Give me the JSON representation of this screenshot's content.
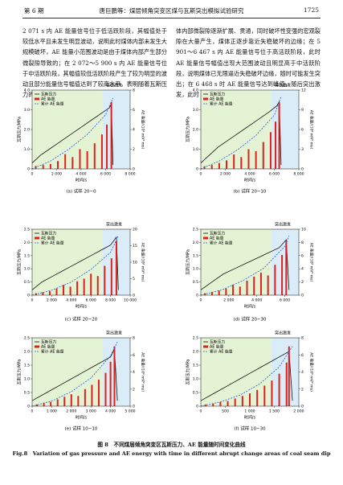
{
  "header": {
    "issue": "第 6 期",
    "running_title": "唐巨鹏等：煤层倾角突变区煤与瓦斯突出模拟试验研究",
    "page": "1725"
  },
  "text": {
    "left": "2 071 s 内 AE 能量信号位于低活跃阶段，其幅值处于较低水平且未发生明显波动，说明此时煤体内部未发生大规模破坏，AE 能量小范围波动是由于煤体内部产生部分微裂隙导致的；在 2 072～5 900 s 内 AE 能量信号位于中活跃阶段，其幅值较低活跃阶段产生了较为明显的波动且部分能量信号幅值达到了较高水平，表明随着瓦斯压力的逐渐增加，煤",
    "right": "体内部微裂隙逐渐扩展、贯通，同时破坏性变强的宏观裂隙在大量产生，煤体正逐步靠近失稳破坏的边缘；在 5 901～6 467 s 内 AE 能量信号位于高活跃阶段，此时 AE 能量信号幅值出现大范围波动且明显高于中活跃阶段，说明煤体已无限逼近失稳破坏边缘，随时可能发生突出；在 6 468 s 时 AE 能量信号达到峰值，随后突出激发，此时 AE 能量信号"
  },
  "figure_caption": {
    "cn": "图 8　不同煤层倾角突变区瓦斯压力、AE 能量随时间变化曲线",
    "en": "Fig.8　Variation of gas pressure and AE energy with time in different abrupt change areas of coal seam dip"
  },
  "chart_data": [
    {
      "type": "combo",
      "caption": "(a)  试样 20−0",
      "xlabel": "时间/s",
      "ylabel": "瓦斯压力/MPa",
      "y2label": "AE 能量/(10⁶ mV²·ms)",
      "annotation": "突出激发",
      "xlim": [
        0,
        8000
      ],
      "xticks": [
        0,
        {
          "value": 2000,
          "label": "2 000"
        },
        {
          "value": 4000,
          "label": "4 000"
        },
        {
          "value": 6000,
          "label": "6 000"
        },
        {
          "value": 8000,
          "label": "8 000"
        }
      ],
      "ylim": [
        0,
        4
      ],
      "yticks": [
        0,
        {
          "value": 1,
          "label": "1.0"
        },
        {
          "value": 2,
          "label": "2.0"
        },
        {
          "value": 3,
          "label": "3.0"
        },
        {
          "value": 4,
          "label": "4.0"
        }
      ],
      "y2lim": [
        0,
        8
      ],
      "y2ticks": [
        0,
        2,
        4,
        6,
        8
      ],
      "series": [
        {
          "name": "瓦斯压力",
          "color": "#111111",
          "kind": "line",
          "x": [
            0,
            700,
            1400,
            2100,
            2800,
            3500,
            4200,
            4900,
            5600,
            6300,
            6468,
            6600
          ],
          "values": [
            0.3,
            0.7,
            1.0,
            1.3,
            1.6,
            1.9,
            2.2,
            2.5,
            2.8,
            3.1,
            3.3,
            0.2
          ]
        },
        {
          "name": "AE 能量",
          "color": "#e0201b",
          "kind": "bar",
          "axis": "y2",
          "x": [
            300,
            900,
            1500,
            2100,
            2700,
            3300,
            3900,
            4500,
            5100,
            5700,
            6100,
            6468
          ],
          "values": [
            0.3,
            0.4,
            0.5,
            0.8,
            1.5,
            1.2,
            2.0,
            1.8,
            2.6,
            3.5,
            4.5,
            6.8
          ]
        },
        {
          "name": "累计 AE 能量",
          "color": "#2a5ad8",
          "kind": "dash",
          "axis": "y2",
          "x": [
            0,
            1500,
            3000,
            4500,
            6000,
            6600
          ],
          "values": [
            0,
            0.8,
            2.0,
            3.5,
            5.5,
            7.2
          ]
        }
      ]
    },
    {
      "type": "combo",
      "caption": "(b)  试样 20−10",
      "xlabel": "时间/s",
      "ylabel": "瓦斯压力/MPa",
      "y2label": "AE 能量/(10⁶ mV²·ms)",
      "annotation": "突出激发",
      "xlim": [
        0,
        8000
      ],
      "xticks": [
        0,
        {
          "value": 2000,
          "label": "2 000"
        },
        {
          "value": 4000,
          "label": "4 000"
        },
        {
          "value": 6000,
          "label": "6 000"
        },
        {
          "value": 8000,
          "label": "8 000"
        }
      ],
      "ylim": [
        0,
        4
      ],
      "yticks": [
        0,
        {
          "value": 1,
          "label": "1.0"
        },
        {
          "value": 2,
          "label": "2.0"
        },
        {
          "value": 3,
          "label": "3.0"
        },
        {
          "value": 4,
          "label": "4.0"
        }
      ],
      "y2lim": [
        0,
        12
      ],
      "y2ticks": [
        0,
        3,
        6,
        9,
        12
      ],
      "series": [
        {
          "name": "瓦斯压力",
          "color": "#111111",
          "kind": "line",
          "x": [
            0,
            700,
            1400,
            2100,
            2800,
            3500,
            4200,
            4900,
            5600,
            6200,
            6400,
            6550
          ],
          "values": [
            0.3,
            0.7,
            1.1,
            1.4,
            1.7,
            2.0,
            2.3,
            2.6,
            2.9,
            3.2,
            3.4,
            0.2
          ]
        },
        {
          "name": "AE 能量",
          "color": "#e0201b",
          "kind": "bar",
          "axis": "y2",
          "x": [
            300,
            900,
            1500,
            2100,
            2700,
            3300,
            3900,
            4500,
            5100,
            5700,
            6100,
            6400
          ],
          "values": [
            0.4,
            0.6,
            0.9,
            1.3,
            2.2,
            1.8,
            3.0,
            2.7,
            4.1,
            5.6,
            7.2,
            10.1
          ]
        },
        {
          "name": "累计 AE 能量",
          "color": "#2a5ad8",
          "kind": "dash",
          "axis": "y2",
          "x": [
            0,
            1500,
            3000,
            4500,
            6000,
            6550
          ],
          "values": [
            0,
            1.2,
            2.9,
            5.1,
            8.2,
            11.0
          ]
        }
      ]
    },
    {
      "type": "combo",
      "caption": "(c)  试样 20−20",
      "xlabel": "时间/s",
      "ylabel": "瓦斯压力/MPa",
      "y2label": "AE 能量/(10⁶ mV²·ms)",
      "annotation": "突出激发",
      "xlim": [
        0,
        10000
      ],
      "xticks": [
        0,
        {
          "value": 2000,
          "label": "2 000"
        },
        {
          "value": 4000,
          "label": "4 000"
        },
        {
          "value": 6000,
          "label": "6 000"
        },
        {
          "value": 8000,
          "label": "8 000"
        },
        {
          "value": 10000,
          "label": "10 000"
        }
      ],
      "ylim": [
        0,
        2.5
      ],
      "yticks": [
        0,
        0.5,
        {
          "value": 1,
          "label": "1.0"
        },
        1.5,
        {
          "value": 2,
          "label": "2.0"
        },
        2.5
      ],
      "y2lim": [
        0,
        20
      ],
      "y2ticks": [
        0,
        5,
        10,
        15,
        20
      ],
      "series": [
        {
          "name": "瓦斯压力",
          "color": "#111111",
          "kind": "line",
          "x": [
            0,
            1000,
            2000,
            3000,
            4000,
            5000,
            6000,
            7000,
            8000,
            8600,
            8800
          ],
          "values": [
            0.2,
            0.5,
            0.7,
            0.9,
            1.1,
            1.3,
            1.5,
            1.7,
            1.9,
            2.2,
            0.2
          ]
        },
        {
          "name": "AE 能量",
          "color": "#e0201b",
          "kind": "bar",
          "axis": "y2",
          "x": [
            400,
            1100,
            1800,
            2500,
            3200,
            3900,
            4600,
            5300,
            6000,
            6700,
            7400,
            8100,
            8600
          ],
          "values": [
            0.6,
            0.9,
            1.2,
            2.0,
            3.1,
            2.6,
            4.2,
            5.0,
            6.5,
            5.8,
            8.9,
            11.2,
            16.4
          ]
        },
        {
          "name": "累计 AE 能量",
          "color": "#2a5ad8",
          "kind": "dash",
          "axis": "y2",
          "x": [
            0,
            2000,
            4000,
            6000,
            8000,
            8800
          ],
          "values": [
            0,
            1.5,
            4.0,
            7.8,
            13.0,
            18.0
          ]
        }
      ]
    },
    {
      "type": "combo",
      "caption": "(d)  试样 20−30",
      "xlabel": "时间/s",
      "ylabel": "瓦斯压力/MPa",
      "y2label": "AE 能量/(10⁶ mV²·ms)",
      "annotation": "突出激发",
      "xlim": [
        0,
        7000
      ],
      "xticks": [
        0,
        {
          "value": 2000,
          "label": "2 000"
        },
        {
          "value": 4000,
          "label": "4 000"
        },
        {
          "value": 6000,
          "label": "6 000"
        }
      ],
      "ylim": [
        0,
        2.5
      ],
      "yticks": [
        0,
        0.5,
        {
          "value": 1,
          "label": "1.0"
        },
        1.5,
        {
          "value": 2,
          "label": "2.0"
        },
        2.5
      ],
      "y2lim": [
        0,
        10
      ],
      "y2ticks": [
        0,
        2,
        4,
        6,
        8,
        10
      ],
      "series": [
        {
          "name": "瓦斯压力",
          "color": "#111111",
          "kind": "line",
          "x": [
            0,
            800,
            1600,
            2400,
            3200,
            4000,
            4800,
            5600,
            6100,
            6300
          ],
          "values": [
            0.2,
            0.5,
            0.8,
            1.0,
            1.2,
            1.4,
            1.6,
            1.8,
            2.1,
            0.2
          ]
        },
        {
          "name": "AE 能量",
          "color": "#e0201b",
          "kind": "bar",
          "axis": "y2",
          "x": [
            300,
            800,
            1300,
            1800,
            2300,
            2800,
            3300,
            3800,
            4300,
            4800,
            5300,
            5800,
            6100
          ],
          "values": [
            0.3,
            0.5,
            0.7,
            1.0,
            1.6,
            1.3,
            2.2,
            2.8,
            3.4,
            3.0,
            4.6,
            6.1,
            8.2
          ]
        },
        {
          "name": "累计 AE 能量",
          "color": "#2a5ad8",
          "kind": "dash",
          "axis": "y2",
          "x": [
            0,
            1500,
            3000,
            4500,
            6000,
            6300
          ],
          "values": [
            0,
            0.8,
            2.2,
            4.1,
            7.4,
            9.0
          ]
        }
      ]
    },
    {
      "type": "combo",
      "caption": "(e)  试样 10−10",
      "xlabel": "时间/s",
      "ylabel": "瓦斯压力/MPa",
      "y2label": "AE 能量/(10⁶ mV²·ms)",
      "annotation": "突出激发",
      "xlim": [
        0,
        5000
      ],
      "xticks": [
        0,
        {
          "value": 1000,
          "label": "1 000"
        },
        {
          "value": 2000,
          "label": "2 000"
        },
        {
          "value": 3000,
          "label": "3 000"
        },
        {
          "value": 4000,
          "label": "4 000"
        },
        {
          "value": 5000,
          "label": "5 000"
        }
      ],
      "ylim": [
        0,
        2.5
      ],
      "yticks": [
        0,
        0.5,
        {
          "value": 1,
          "label": "1.0"
        },
        1.5,
        {
          "value": 2,
          "label": "2.0"
        },
        2.5
      ],
      "y2lim": [
        0,
        8
      ],
      "y2ticks": [
        0,
        2,
        4,
        6,
        8
      ],
      "series": [
        {
          "name": "瓦斯压力",
          "color": "#111111",
          "kind": "line",
          "x": [
            0,
            500,
            1000,
            1500,
            2000,
            2500,
            3000,
            3500,
            4000,
            4200,
            4350
          ],
          "values": [
            0.2,
            0.4,
            0.6,
            0.8,
            1.0,
            1.2,
            1.4,
            1.6,
            1.8,
            2.1,
            0.2
          ]
        },
        {
          "name": "AE 能量",
          "color": "#e0201b",
          "kind": "bar",
          "axis": "y2",
          "x": [
            250,
            600,
            950,
            1300,
            1650,
            2000,
            2350,
            2700,
            3050,
            3400,
            3750,
            4000,
            4200
          ],
          "values": [
            0.2,
            0.4,
            0.5,
            0.8,
            1.1,
            1.4,
            1.2,
            2.0,
            2.5,
            3.1,
            3.9,
            5.2,
            7.0
          ]
        },
        {
          "name": "累计 AE 能量",
          "color": "#2a5ad8",
          "kind": "dash",
          "axis": "y2",
          "x": [
            0,
            1000,
            2000,
            3000,
            4000,
            4350
          ],
          "values": [
            0,
            0.6,
            1.7,
            3.3,
            5.9,
            7.5
          ]
        }
      ]
    },
    {
      "type": "combo",
      "caption": "(f)  试样 10−30",
      "xlabel": "时间/s",
      "ylabel": "瓦斯压力/MPa",
      "y2label": "AE 能量/(10⁶ mV²·ms)",
      "annotation": "突出激发",
      "xlim": [
        0,
        2000
      ],
      "xticks": [
        0,
        500,
        {
          "value": 1000,
          "label": "1 000"
        },
        {
          "value": 1500,
          "label": "1 500"
        },
        {
          "value": 2000,
          "label": "2 000"
        }
      ],
      "ylim": [
        0,
        2.5
      ],
      "yticks": [
        0,
        0.5,
        {
          "value": 1,
          "label": "1.0"
        },
        1.5,
        {
          "value": 2,
          "label": "2.0"
        },
        2.5
      ],
      "y2lim": [
        0,
        8
      ],
      "y2ticks": [
        0,
        2,
        4,
        6,
        8
      ],
      "series": [
        {
          "name": "瓦斯压力",
          "color": "#111111",
          "kind": "line",
          "x": [
            0,
            200,
            400,
            600,
            800,
            1000,
            1200,
            1400,
            1600,
            1800,
            1870
          ],
          "values": [
            0.2,
            0.4,
            0.6,
            0.8,
            1.0,
            1.2,
            1.4,
            1.6,
            1.8,
            2.0,
            0.2
          ]
        },
        {
          "name": "AE 能量",
          "color": "#e0201b",
          "kind": "bar",
          "axis": "y2",
          "x": [
            100,
            250,
            400,
            550,
            700,
            850,
            1000,
            1150,
            1300,
            1450,
            1600,
            1750,
            1800
          ],
          "values": [
            0.2,
            0.3,
            0.5,
            0.6,
            0.9,
            1.2,
            1.5,
            1.9,
            2.4,
            3.0,
            3.8,
            5.1,
            7.0
          ]
        },
        {
          "name": "累计 AE 能量",
          "color": "#2a5ad8",
          "kind": "dash",
          "axis": "y2",
          "x": [
            0,
            400,
            800,
            1200,
            1600,
            1870
          ],
          "values": [
            0,
            0.5,
            1.3,
            2.6,
            4.6,
            7.0
          ]
        }
      ]
    }
  ]
}
